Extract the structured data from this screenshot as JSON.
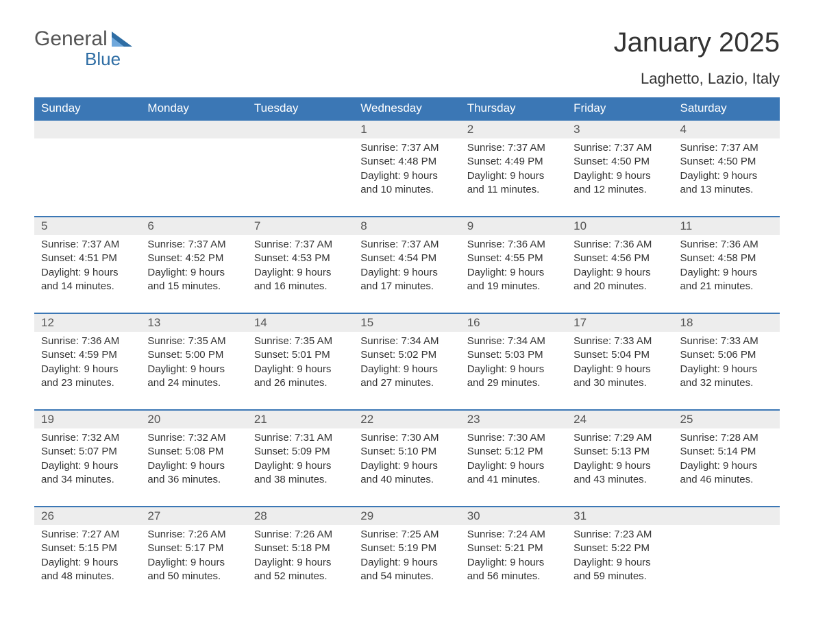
{
  "logo": {
    "text_general": "General",
    "text_blue": "Blue"
  },
  "title": "January 2025",
  "location": "Laghetto, Lazio, Italy",
  "colors": {
    "header_bg": "#3b77b5",
    "header_text": "#ffffff",
    "daynum_bg": "#ededed",
    "row_border": "#3b77b5",
    "body_text": "#333333"
  },
  "day_headers": [
    "Sunday",
    "Monday",
    "Tuesday",
    "Wednesday",
    "Thursday",
    "Friday",
    "Saturday"
  ],
  "weeks": [
    [
      null,
      null,
      null,
      {
        "n": "1",
        "sunrise": "Sunrise: 7:37 AM",
        "sunset": "Sunset: 4:48 PM",
        "dl1": "Daylight: 9 hours",
        "dl2": "and 10 minutes."
      },
      {
        "n": "2",
        "sunrise": "Sunrise: 7:37 AM",
        "sunset": "Sunset: 4:49 PM",
        "dl1": "Daylight: 9 hours",
        "dl2": "and 11 minutes."
      },
      {
        "n": "3",
        "sunrise": "Sunrise: 7:37 AM",
        "sunset": "Sunset: 4:50 PM",
        "dl1": "Daylight: 9 hours",
        "dl2": "and 12 minutes."
      },
      {
        "n": "4",
        "sunrise": "Sunrise: 7:37 AM",
        "sunset": "Sunset: 4:50 PM",
        "dl1": "Daylight: 9 hours",
        "dl2": "and 13 minutes."
      }
    ],
    [
      {
        "n": "5",
        "sunrise": "Sunrise: 7:37 AM",
        "sunset": "Sunset: 4:51 PM",
        "dl1": "Daylight: 9 hours",
        "dl2": "and 14 minutes."
      },
      {
        "n": "6",
        "sunrise": "Sunrise: 7:37 AM",
        "sunset": "Sunset: 4:52 PM",
        "dl1": "Daylight: 9 hours",
        "dl2": "and 15 minutes."
      },
      {
        "n": "7",
        "sunrise": "Sunrise: 7:37 AM",
        "sunset": "Sunset: 4:53 PM",
        "dl1": "Daylight: 9 hours",
        "dl2": "and 16 minutes."
      },
      {
        "n": "8",
        "sunrise": "Sunrise: 7:37 AM",
        "sunset": "Sunset: 4:54 PM",
        "dl1": "Daylight: 9 hours",
        "dl2": "and 17 minutes."
      },
      {
        "n": "9",
        "sunrise": "Sunrise: 7:36 AM",
        "sunset": "Sunset: 4:55 PM",
        "dl1": "Daylight: 9 hours",
        "dl2": "and 19 minutes."
      },
      {
        "n": "10",
        "sunrise": "Sunrise: 7:36 AM",
        "sunset": "Sunset: 4:56 PM",
        "dl1": "Daylight: 9 hours",
        "dl2": "and 20 minutes."
      },
      {
        "n": "11",
        "sunrise": "Sunrise: 7:36 AM",
        "sunset": "Sunset: 4:58 PM",
        "dl1": "Daylight: 9 hours",
        "dl2": "and 21 minutes."
      }
    ],
    [
      {
        "n": "12",
        "sunrise": "Sunrise: 7:36 AM",
        "sunset": "Sunset: 4:59 PM",
        "dl1": "Daylight: 9 hours",
        "dl2": "and 23 minutes."
      },
      {
        "n": "13",
        "sunrise": "Sunrise: 7:35 AM",
        "sunset": "Sunset: 5:00 PM",
        "dl1": "Daylight: 9 hours",
        "dl2": "and 24 minutes."
      },
      {
        "n": "14",
        "sunrise": "Sunrise: 7:35 AM",
        "sunset": "Sunset: 5:01 PM",
        "dl1": "Daylight: 9 hours",
        "dl2": "and 26 minutes."
      },
      {
        "n": "15",
        "sunrise": "Sunrise: 7:34 AM",
        "sunset": "Sunset: 5:02 PM",
        "dl1": "Daylight: 9 hours",
        "dl2": "and 27 minutes."
      },
      {
        "n": "16",
        "sunrise": "Sunrise: 7:34 AM",
        "sunset": "Sunset: 5:03 PM",
        "dl1": "Daylight: 9 hours",
        "dl2": "and 29 minutes."
      },
      {
        "n": "17",
        "sunrise": "Sunrise: 7:33 AM",
        "sunset": "Sunset: 5:04 PM",
        "dl1": "Daylight: 9 hours",
        "dl2": "and 30 minutes."
      },
      {
        "n": "18",
        "sunrise": "Sunrise: 7:33 AM",
        "sunset": "Sunset: 5:06 PM",
        "dl1": "Daylight: 9 hours",
        "dl2": "and 32 minutes."
      }
    ],
    [
      {
        "n": "19",
        "sunrise": "Sunrise: 7:32 AM",
        "sunset": "Sunset: 5:07 PM",
        "dl1": "Daylight: 9 hours",
        "dl2": "and 34 minutes."
      },
      {
        "n": "20",
        "sunrise": "Sunrise: 7:32 AM",
        "sunset": "Sunset: 5:08 PM",
        "dl1": "Daylight: 9 hours",
        "dl2": "and 36 minutes."
      },
      {
        "n": "21",
        "sunrise": "Sunrise: 7:31 AM",
        "sunset": "Sunset: 5:09 PM",
        "dl1": "Daylight: 9 hours",
        "dl2": "and 38 minutes."
      },
      {
        "n": "22",
        "sunrise": "Sunrise: 7:30 AM",
        "sunset": "Sunset: 5:10 PM",
        "dl1": "Daylight: 9 hours",
        "dl2": "and 40 minutes."
      },
      {
        "n": "23",
        "sunrise": "Sunrise: 7:30 AM",
        "sunset": "Sunset: 5:12 PM",
        "dl1": "Daylight: 9 hours",
        "dl2": "and 41 minutes."
      },
      {
        "n": "24",
        "sunrise": "Sunrise: 7:29 AM",
        "sunset": "Sunset: 5:13 PM",
        "dl1": "Daylight: 9 hours",
        "dl2": "and 43 minutes."
      },
      {
        "n": "25",
        "sunrise": "Sunrise: 7:28 AM",
        "sunset": "Sunset: 5:14 PM",
        "dl1": "Daylight: 9 hours",
        "dl2": "and 46 minutes."
      }
    ],
    [
      {
        "n": "26",
        "sunrise": "Sunrise: 7:27 AM",
        "sunset": "Sunset: 5:15 PM",
        "dl1": "Daylight: 9 hours",
        "dl2": "and 48 minutes."
      },
      {
        "n": "27",
        "sunrise": "Sunrise: 7:26 AM",
        "sunset": "Sunset: 5:17 PM",
        "dl1": "Daylight: 9 hours",
        "dl2": "and 50 minutes."
      },
      {
        "n": "28",
        "sunrise": "Sunrise: 7:26 AM",
        "sunset": "Sunset: 5:18 PM",
        "dl1": "Daylight: 9 hours",
        "dl2": "and 52 minutes."
      },
      {
        "n": "29",
        "sunrise": "Sunrise: 7:25 AM",
        "sunset": "Sunset: 5:19 PM",
        "dl1": "Daylight: 9 hours",
        "dl2": "and 54 minutes."
      },
      {
        "n": "30",
        "sunrise": "Sunrise: 7:24 AM",
        "sunset": "Sunset: 5:21 PM",
        "dl1": "Daylight: 9 hours",
        "dl2": "and 56 minutes."
      },
      {
        "n": "31",
        "sunrise": "Sunrise: 7:23 AM",
        "sunset": "Sunset: 5:22 PM",
        "dl1": "Daylight: 9 hours",
        "dl2": "and 59 minutes."
      },
      null
    ]
  ]
}
